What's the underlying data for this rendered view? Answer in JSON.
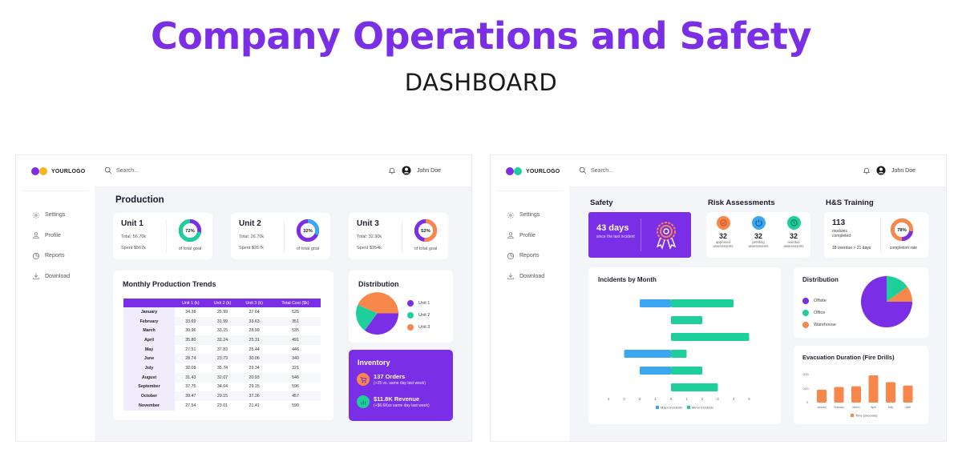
{
  "page": {
    "title": "Company Operations and Safety",
    "subtitle": "DASHBOARD"
  },
  "colors": {
    "purple": "#7a2ee6",
    "green": "#1fcf9b",
    "orange": "#f7874a",
    "blue": "#3aa7f0",
    "yellow": "#f5b51c",
    "bg": "#f4f5f9"
  },
  "common": {
    "logo": "YOURLOGO",
    "search_placeholder": "Search...",
    "user_name": "John Doe",
    "nav": [
      {
        "label": "Settings",
        "icon": "gear-icon"
      },
      {
        "label": "Profile",
        "icon": "user-icon"
      },
      {
        "label": "Reports",
        "icon": "pie-chart-icon"
      },
      {
        "label": "Download",
        "icon": "download-icon"
      }
    ]
  },
  "operations": {
    "production_title": "Production",
    "units": [
      {
        "name": "Unit 1",
        "total": "Total: 56.70k",
        "spent": "Spent $567k",
        "percent": "72%",
        "percent_value": 72,
        "goal_label": "of total goal",
        "fill": "#1fcf9b",
        "rest": "#7a2ee6"
      },
      {
        "name": "Unit 2",
        "total": "Total: 26.70k",
        "spent": "Spent $267k",
        "percent": "32%",
        "percent_value": 32,
        "goal_label": "of total goal",
        "fill": "#3aa7f0",
        "rest": "#7a2ee6"
      },
      {
        "name": "Unit 3",
        "total": "Total: 32.90k",
        "spent": "Spent $354k",
        "percent": "52%",
        "percent_value": 52,
        "goal_label": "of total goal",
        "fill": "#f7874a",
        "rest": "#7a2ee6"
      }
    ],
    "trends": {
      "title": "Monthly Production Trends",
      "headers": [
        "",
        "Unit 1 (k)",
        "Unit 2 (k)",
        "Unit 3 (k)",
        "Total Cost ($k)"
      ],
      "rows": [
        [
          "January",
          "34.38",
          "25.99",
          "27.64",
          "525"
        ],
        [
          "February",
          "33.69",
          "31.99",
          "33.63",
          "351"
        ],
        [
          "March",
          "30.96",
          "33.15",
          "28.99",
          "535"
        ],
        [
          "April",
          "35.80",
          "32.24",
          "25.31",
          "491"
        ],
        [
          "May",
          "27.51",
          "37.83",
          "25.44",
          "446"
        ],
        [
          "June",
          "28.74",
          "23.73",
          "30.06",
          "340"
        ],
        [
          "July",
          "32.08",
          "35.74",
          "29.34",
          "321"
        ],
        [
          "August",
          "31.43",
          "32.07",
          "20.93",
          "546"
        ],
        [
          "September",
          "37.75",
          "34.64",
          "29.15",
          "596"
        ],
        [
          "October",
          "39.47",
          "29.15",
          "37.26",
          "457"
        ],
        [
          "November",
          "27.54",
          "23.01",
          "21.41",
          "590"
        ]
      ]
    },
    "distribution": {
      "title": "Distribution",
      "legend": [
        {
          "label": "Unit 1",
          "color": "#7a2ee6"
        },
        {
          "label": "Unit 2",
          "color": "#1fcf9b"
        },
        {
          "label": "Unit 3",
          "color": "#f7874a"
        }
      ]
    },
    "inventory": {
      "title": "Inventory",
      "orders": "137 Orders",
      "orders_sub": "(+25 vs. same day last week)",
      "revenue": "$11.8K Revenue",
      "revenue_sub": "(+$6.6Kvs same day last week)"
    }
  },
  "safety": {
    "safety_title": "Safety",
    "days": "43 days",
    "days_sub": "since the last incident",
    "risk_title": "Risk Assessments",
    "risk": [
      {
        "value": "32",
        "label": "approved assessments",
        "color": "#f7874a"
      },
      {
        "value": "32",
        "label": "pending assessments",
        "color": "#3aa7f0"
      },
      {
        "value": "32",
        "label": "overdue assessments",
        "color": "#1fcf9b"
      }
    ],
    "training_title": "H&S Training",
    "modules": "113",
    "modules_label": "modules completed",
    "overdue": "18 overdue > 21 days",
    "completion_pct": "78%",
    "completion_label": "completion rate",
    "incidents_title": "Incidents by Month",
    "dist_title": "Distribution",
    "dist_legend": [
      {
        "label": "Offsite",
        "color": "#7a2ee6"
      },
      {
        "label": "Office",
        "color": "#1fcf9b"
      },
      {
        "label": "Warehouse",
        "color": "#f7874a"
      }
    ],
    "evac_title": "Evacuation Duration (Fire Drills)"
  },
  "chart_data": [
    {
      "type": "pie",
      "title": "Distribution (Operations)",
      "categories": [
        "Unit 1",
        "Unit 2",
        "Unit 3"
      ],
      "values": [
        35,
        22,
        43
      ]
    },
    {
      "type": "bar",
      "orientation": "horizontal",
      "title": "Incidents by Month",
      "categories": [
        "1",
        "2",
        "3",
        "4",
        "5",
        "6"
      ],
      "series": [
        {
          "name": "Major Incidents",
          "values": [
            2,
            0,
            0,
            3,
            2,
            0
          ],
          "direction": "left"
        },
        {
          "name": "Minor Incidents",
          "values": [
            4,
            2,
            5,
            1,
            2,
            3
          ],
          "direction": "right"
        }
      ],
      "xticks": [
        "4",
        "3",
        "2",
        "1",
        "0",
        "1",
        "2",
        "3",
        "4",
        "5"
      ],
      "xlim": [
        -4,
        5
      ],
      "legend_position": "bottom"
    },
    {
      "type": "pie",
      "title": "Distribution (Safety)",
      "categories": [
        "Offsite",
        "Office",
        "Warehouse"
      ],
      "values": [
        75,
        15,
        10
      ]
    },
    {
      "type": "bar",
      "title": "Evacuation Duration (Fire Drills)",
      "categories": [
        "January",
        "February",
        "March",
        "April",
        "May",
        "June"
      ],
      "series": [
        {
          "name": "Time (seconds)",
          "values": [
            95,
            115,
            120,
            200,
            150,
            125
          ]
        }
      ],
      "yticks": [
        "0",
        "100",
        "200"
      ],
      "ylim": [
        0,
        200
      ],
      "legend_position": "bottom"
    }
  ]
}
